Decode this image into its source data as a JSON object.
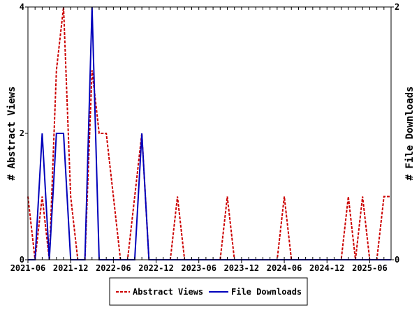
{
  "chart_data": {
    "type": "line",
    "x": [
      "2021-06",
      "2021-07",
      "2021-08",
      "2021-09",
      "2021-10",
      "2021-11",
      "2021-12",
      "2022-01",
      "2022-02",
      "2022-03",
      "2022-04",
      "2022-05",
      "2022-06",
      "2022-07",
      "2022-08",
      "2022-09",
      "2022-10",
      "2022-11",
      "2022-12",
      "2023-01",
      "2023-02",
      "2023-03",
      "2023-04",
      "2023-05",
      "2023-06",
      "2023-07",
      "2023-08",
      "2023-09",
      "2023-10",
      "2023-11",
      "2023-12",
      "2024-01",
      "2024-02",
      "2024-03",
      "2024-04",
      "2024-05",
      "2024-06",
      "2024-07",
      "2024-08",
      "2024-09",
      "2024-10",
      "2024-11",
      "2024-12",
      "2025-01",
      "2025-02",
      "2025-03",
      "2025-04",
      "2025-05",
      "2025-06",
      "2025-07",
      "2025-08",
      "2025-09"
    ],
    "xtick_labels": [
      "2021-06",
      "2021-12",
      "2022-06",
      "2022-12",
      "2023-06",
      "2023-12",
      "2024-06",
      "2024-12",
      "2025-06"
    ],
    "series": [
      {
        "name": "Abstract Views",
        "axis": "left",
        "color": "#cc0000",
        "style": "dashed",
        "values": [
          1,
          0,
          1,
          0,
          3,
          4,
          1,
          0,
          0,
          3,
          2,
          2,
          1,
          0,
          0,
          1,
          2,
          0,
          0,
          0,
          0,
          1,
          0,
          0,
          0,
          0,
          0,
          0,
          1,
          0,
          0,
          0,
          0,
          0,
          0,
          0,
          1,
          0,
          0,
          0,
          0,
          0,
          0,
          0,
          0,
          1,
          0,
          1,
          0,
          0,
          1,
          1
        ]
      },
      {
        "name": "File Downloads",
        "axis": "right",
        "color": "#0000bb",
        "style": "solid",
        "values": [
          0,
          0,
          1,
          0,
          1,
          1,
          0,
          0,
          0,
          2,
          0,
          0,
          0,
          0,
          0,
          0,
          1,
          0,
          0,
          0,
          0,
          0,
          0,
          0,
          0,
          0,
          0,
          0,
          0,
          0,
          0,
          0,
          0,
          0,
          0,
          0,
          0,
          0,
          0,
          0,
          0,
          0,
          0,
          0,
          0,
          0,
          0,
          0,
          0,
          0,
          0,
          0
        ]
      }
    ],
    "ylabel": "# Abstract Views",
    "y2label": "# File Downloads",
    "ylim": [
      0,
      4
    ],
    "y2lim": [
      0,
      2
    ],
    "yticks": [
      "0",
      "2",
      "4"
    ],
    "y2ticks": [
      "0",
      "2"
    ],
    "legend_position": "bottom",
    "grid": false
  }
}
